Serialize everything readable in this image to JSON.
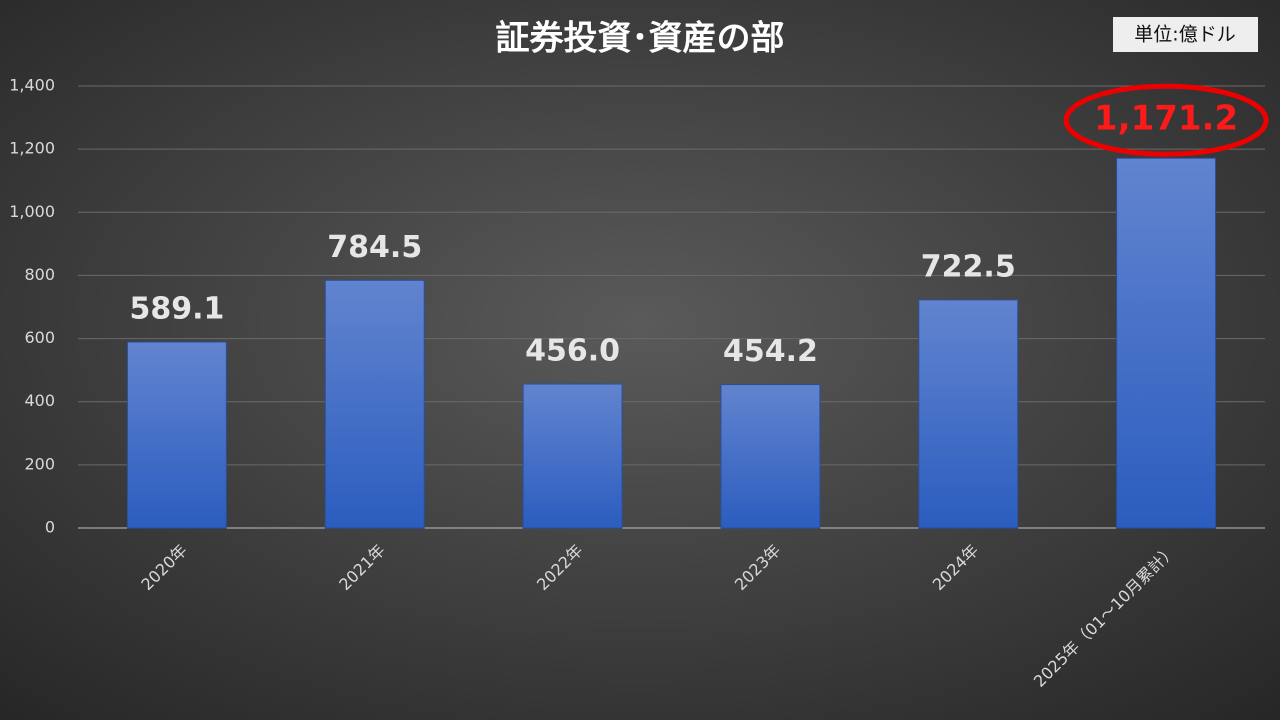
{
  "chart_data": {
    "type": "bar",
    "title": "証券投資･資産の部",
    "unit": "単位:億ドル",
    "categories": [
      "2020年",
      "2021年",
      "2022年",
      "2023年",
      "2024年",
      "2025年（01～10月累計）"
    ],
    "values": [
      589.1,
      784.5,
      456.0,
      454.2,
      722.5,
      1171.2
    ],
    "value_labels": [
      "589.1",
      "784.5",
      "456.0",
      "454.2",
      "722.5",
      "1,171.2"
    ],
    "color": "#4472c4",
    "ylim": [
      0,
      1400
    ],
    "yticks": [
      0,
      200,
      400,
      600,
      800,
      {
        "value": 1000,
        "label": "1,000"
      },
      {
        "value": 1200,
        "label": "1,200"
      },
      {
        "value": 1400,
        "label": "1,400"
      }
    ],
    "grid": true
  }
}
